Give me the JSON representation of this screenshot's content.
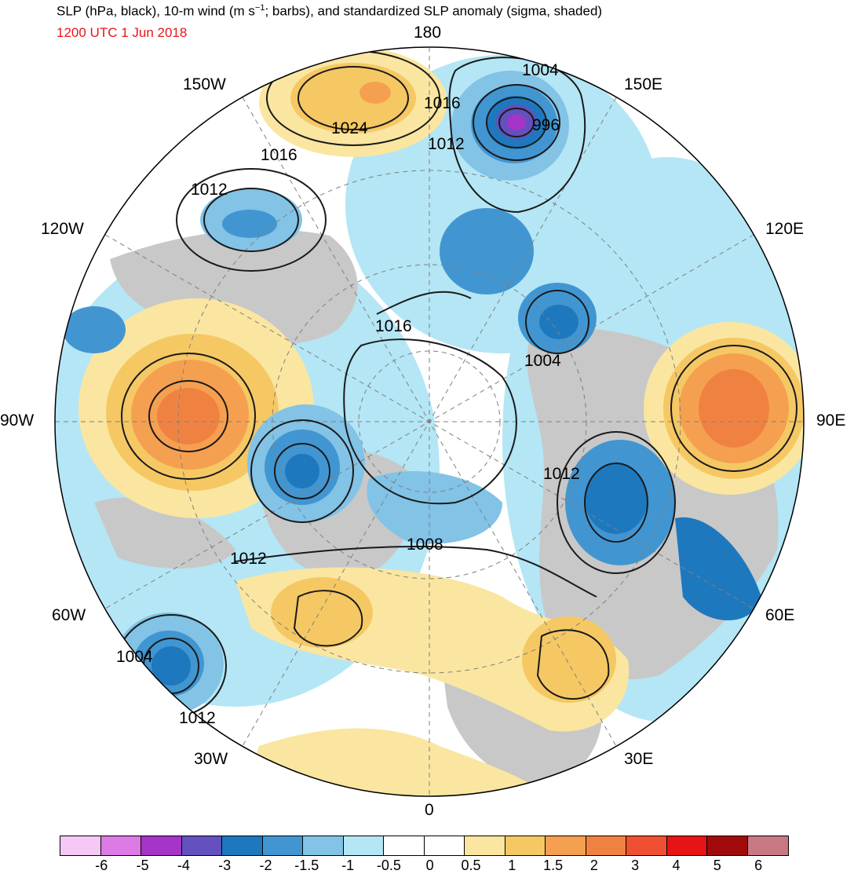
{
  "title": {
    "main_prefix": "SLP (hPa, black), 10-m wind (m s",
    "main_sup": "−1",
    "main_suffix": "; barbs), and standardized SLP anomaly (sigma, shaded)",
    "time": "1200 UTC 1 Jun 2018"
  },
  "longitude_labels": {
    "top": "180",
    "bottom": "0",
    "left": "90W",
    "right": "90E",
    "w150": "150W",
    "w120": "120W",
    "w60": "60W",
    "w30": "30W",
    "e150": "150E",
    "e120": "120E",
    "e60": "60E",
    "e30": "30E"
  },
  "contour_labels": [
    {
      "name": "isobar-1004-northpacific",
      "text": "1004"
    },
    {
      "name": "isobar-996-low-center",
      "text": "996"
    },
    {
      "name": "isobar-1016-bering",
      "text": "1016"
    },
    {
      "name": "isobar-1012-bering",
      "text": "1012"
    },
    {
      "name": "isobar-1024-alaska-high",
      "text": "1024"
    },
    {
      "name": "isobar-1016-gulf-alaska",
      "text": "1016"
    },
    {
      "name": "isobar-1012-gulf-alaska",
      "text": "1012"
    },
    {
      "name": "isobar-1016-arctic",
      "text": "1016"
    },
    {
      "name": "isobar-1004-siberia",
      "text": "1004"
    },
    {
      "name": "isobar-1012-kara",
      "text": "1012"
    },
    {
      "name": "isobar-1008-greenland",
      "text": "1008"
    },
    {
      "name": "isobar-1012-labrador",
      "text": "1012"
    },
    {
      "name": "isobar-1004-atlantic-low",
      "text": "1004"
    },
    {
      "name": "isobar-1012-atlantic",
      "text": "1012"
    }
  ],
  "colorbar": {
    "colors": [
      "#f5c8f5",
      "#dc7ae6",
      "#a634c8",
      "#6450be",
      "#1e78be",
      "#4196d2",
      "#82c3e6",
      "#b4e6f5",
      "#ffffff",
      "#ffffff",
      "#fae6a0",
      "#f5c864",
      "#f5a050",
      "#f08241",
      "#f05032",
      "#e61414",
      "#a00a0a",
      "#c87882"
    ],
    "ticks": [
      "-6",
      "-5",
      "-4",
      "-3",
      "-2",
      "-1.5",
      "-1",
      "-0.5",
      "0",
      "0.5",
      "1",
      "1.5",
      "2",
      "3",
      "4",
      "5",
      "6"
    ]
  },
  "colors": {
    "land_gray": "#c8c8c8",
    "time_red": "#e8141b",
    "contour": "#1a1a1a"
  }
}
